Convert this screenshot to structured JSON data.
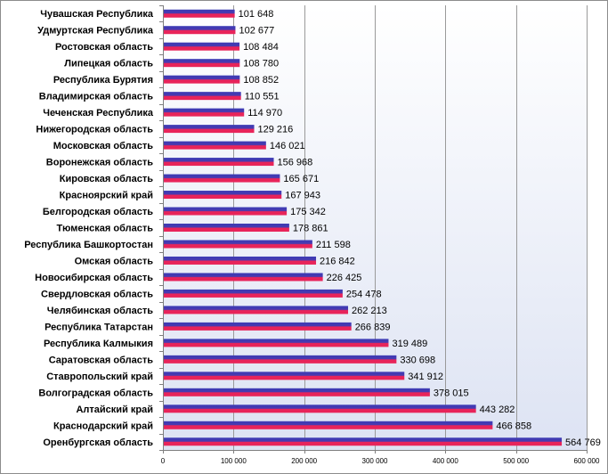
{
  "chart_data": {
    "type": "bar",
    "orientation": "horizontal",
    "categories": [
      "Чувашская Республика",
      "Удмуртская Республика",
      "Ростовская область",
      "Липецкая область",
      "Республика Бурятия",
      "Владимирская область",
      "Чеченская Республика",
      "Нижегородская область",
      "Московская область",
      "Воронежская область",
      "Кировская область",
      "Красноярский край",
      "Белгородская область",
      "Тюменская область",
      "Республика Башкортостан",
      "Омская область",
      "Новосибирская область",
      "Свердловская область",
      "Челябинская область",
      "Республика Татарстан",
      "Республика Калмыкия",
      "Саратовская область",
      "Ставропольский край",
      "Волгоградская область",
      "Алтайский край",
      "Краснодарский край",
      "Оренбургская область"
    ],
    "values": [
      101648,
      102677,
      108484,
      108780,
      108852,
      110551,
      114970,
      129216,
      146021,
      156968,
      165671,
      167943,
      175342,
      178861,
      211598,
      216842,
      226425,
      254478,
      262213,
      266839,
      319489,
      330698,
      341912,
      378015,
      443282,
      466858,
      564769
    ],
    "value_labels": [
      "101 648",
      "102 677",
      "108 484",
      "108 780",
      "108 852",
      "110 551",
      "114 970",
      "129 216",
      "146 021",
      "156 968",
      "165 671",
      "167 943",
      "175 342",
      "178 861",
      "211 598",
      "216 842",
      "226 425",
      "254 478",
      "262 213",
      "266 839",
      "319 489",
      "330 698",
      "341 912",
      "378 015",
      "443 282",
      "466 858",
      "564 769"
    ],
    "xlim": [
      0,
      600000
    ],
    "x_ticks": [
      0,
      100000,
      200000,
      300000,
      400000,
      500000,
      600000
    ],
    "x_tick_labels": [
      "0",
      "100 000",
      "200 000",
      "300 000",
      "400 000",
      "500 000",
      "600 000"
    ],
    "title": "",
    "xlabel": "",
    "ylabel": "",
    "grid": true,
    "legend": "none",
    "colors": {
      "bar_top": "#3b3bb5",
      "bar_bottom": "#e8245a",
      "plot_bg_top": "#ffffff",
      "plot_bg_bottom": "#dde3f3",
      "grid": "#9a9a9a",
      "axis": "#7f7f7f"
    }
  }
}
